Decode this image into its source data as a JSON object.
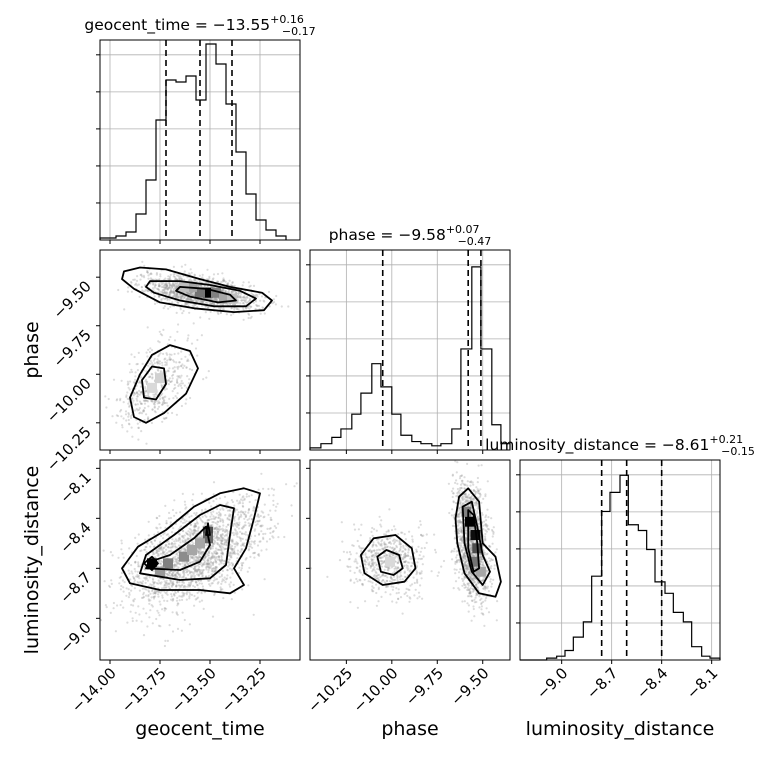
{
  "chart_data": [
    {
      "type": "histogram",
      "panel": "diag-0",
      "title": {
        "prefix": "geocent_time = −13.55",
        "sup": "+0.16",
        "sub": "−0.17"
      },
      "xlim": [
        -14.05,
        -13.05
      ],
      "xticks": [
        -14.0,
        -13.75,
        -13.5,
        -13.25
      ],
      "xtick_labels": [
        "−14.00",
        "−13.75",
        "−13.50",
        "−13.25"
      ],
      "xlabel": "geocent_time",
      "quantile_lines": [
        -13.72,
        -13.55,
        -13.39
      ],
      "bins": [
        -14.05,
        -13.97,
        -13.92,
        -13.87,
        -13.82,
        -13.77,
        -13.72,
        -13.67,
        -13.62,
        -13.57,
        -13.52,
        -13.47,
        -13.42,
        -13.37,
        -13.32,
        -13.27,
        -13.22,
        -13.17,
        -13.12
      ],
      "counts": [
        1,
        2,
        4,
        13,
        30,
        60,
        80,
        79,
        82,
        70,
        98,
        88,
        68,
        44,
        23,
        10,
        5,
        2
      ],
      "ylim": [
        0,
        100
      ]
    },
    {
      "type": "histogram",
      "panel": "diag-1",
      "title": {
        "prefix": "phase = −9.58",
        "sup": "+0.07",
        "sub": "−0.47"
      },
      "xlim": [
        -10.45,
        -9.35
      ],
      "xticks": [
        -10.25,
        -10.0,
        -9.75,
        -9.5
      ],
      "xtick_labels": [
        "−10.25",
        "−10.00",
        "−9.75",
        "−9.50"
      ],
      "xlabel": "phase",
      "quantile_lines": [
        -10.05,
        -9.58,
        -9.51
      ],
      "bins": [
        -10.45,
        -10.39,
        -10.33,
        -10.28,
        -10.22,
        -10.17,
        -10.11,
        -10.06,
        -10.0,
        -9.95,
        -9.89,
        -9.84,
        -9.78,
        -9.73,
        -9.67,
        -9.62,
        -9.56,
        -9.51,
        -9.45,
        -9.4,
        -9.35
      ],
      "counts": [
        1,
        3,
        6,
        10,
        17,
        27,
        41,
        30,
        17,
        7,
        4,
        3,
        2,
        3,
        10,
        48,
        87,
        48,
        12,
        3
      ],
      "ylim": [
        0,
        95
      ]
    },
    {
      "type": "histogram",
      "panel": "diag-2",
      "title": {
        "prefix": "luminosity_distance = −8.61",
        "sup": "+0.21",
        "sub": "−0.15"
      },
      "xlim": [
        -9.25,
        -8.05
      ],
      "xticks": [
        -9.0,
        -8.7,
        -8.4,
        -8.1
      ],
      "xtick_labels": [
        "−9.0",
        "−8.7",
        "−8.4",
        "−8.1"
      ],
      "xlabel": "luminosity_distance",
      "quantile_lines": [
        -8.76,
        -8.61,
        -8.4
      ],
      "bins": [
        -9.25,
        -9.2,
        -9.14,
        -9.09,
        -9.03,
        -8.98,
        -8.93,
        -8.87,
        -8.82,
        -8.76,
        -8.71,
        -8.65,
        -8.6,
        -8.54,
        -8.49,
        -8.44,
        -8.38,
        -8.33,
        -8.27,
        -8.22,
        -8.16,
        -8.11,
        -8.05
      ],
      "counts": [
        0,
        0,
        0,
        1,
        2,
        5,
        12,
        20,
        44,
        78,
        88,
        97,
        71,
        68,
        58,
        41,
        35,
        25,
        20,
        7,
        2,
        1
      ],
      "ylim": [
        0,
        105
      ]
    },
    {
      "type": "scatter",
      "panel": "geocent_time-vs-phase",
      "xlim": [
        -14.05,
        -13.05
      ],
      "ylim": [
        -10.39,
        -9.36
      ],
      "ylabel": "phase",
      "yticks": [
        -9.5,
        -9.75,
        -10.0,
        -10.25
      ],
      "ytick_labels": [
        "−9.50",
        "−9.75",
        "−10.00",
        "−10.25"
      ],
      "clusters": [
        {
          "n": 1500,
          "mean": [
            -13.55,
            -9.58
          ],
          "std": [
            0.14,
            0.045
          ],
          "rho": -0.45
        },
        {
          "n": 480,
          "mean": [
            -13.77,
            -10.05
          ],
          "std": [
            0.09,
            0.11
          ],
          "rho": 0.5
        }
      ],
      "dense_cells": [
        [
          -13.51,
          -9.58,
          1.0
        ],
        [
          -13.55,
          -9.58,
          0.55
        ],
        [
          -13.47,
          -9.58,
          0.5
        ],
        [
          -13.59,
          -9.55,
          0.35
        ],
        [
          -13.43,
          -9.61,
          0.35
        ],
        [
          -13.63,
          -9.55,
          0.25
        ],
        [
          -13.39,
          -9.61,
          0.25
        ],
        [
          -13.75,
          -10.02,
          0.18
        ],
        [
          -13.79,
          -10.07,
          0.15
        ]
      ],
      "contours": [
        [
          [
            -13.93,
            -9.47
          ],
          [
            -13.85,
            -9.45
          ],
          [
            -13.72,
            -9.46
          ],
          [
            -13.55,
            -9.51
          ],
          [
            -13.4,
            -9.55
          ],
          [
            -13.24,
            -9.58
          ],
          [
            -13.19,
            -9.62
          ],
          [
            -13.23,
            -9.67
          ],
          [
            -13.38,
            -9.68
          ],
          [
            -13.58,
            -9.66
          ],
          [
            -13.75,
            -9.63
          ],
          [
            -13.88,
            -9.56
          ],
          [
            -13.94,
            -9.51
          ]
        ],
        [
          [
            -13.8,
            -9.52
          ],
          [
            -13.65,
            -9.52
          ],
          [
            -13.5,
            -9.54
          ],
          [
            -13.35,
            -9.57
          ],
          [
            -13.27,
            -9.61
          ],
          [
            -13.32,
            -9.65
          ],
          [
            -13.48,
            -9.65
          ],
          [
            -13.65,
            -9.62
          ],
          [
            -13.78,
            -9.58
          ],
          [
            -13.82,
            -9.55
          ]
        ],
        [
          [
            -13.65,
            -9.55
          ],
          [
            -13.52,
            -9.56
          ],
          [
            -13.4,
            -9.59
          ],
          [
            -13.37,
            -9.62
          ],
          [
            -13.46,
            -9.63
          ],
          [
            -13.6,
            -9.6
          ],
          [
            -13.67,
            -9.57
          ]
        ],
        [
          [
            -13.88,
            -10.22
          ],
          [
            -13.82,
            -10.25
          ],
          [
            -13.73,
            -10.2
          ],
          [
            -13.62,
            -10.1
          ],
          [
            -13.56,
            -9.97
          ],
          [
            -13.6,
            -9.88
          ],
          [
            -13.7,
            -9.85
          ],
          [
            -13.79,
            -9.9
          ],
          [
            -13.85,
            -10.0
          ],
          [
            -13.9,
            -10.12
          ]
        ],
        [
          [
            -13.83,
            -10.12
          ],
          [
            -13.77,
            -10.13
          ],
          [
            -13.72,
            -10.05
          ],
          [
            -13.73,
            -9.97
          ],
          [
            -13.79,
            -9.96
          ],
          [
            -13.84,
            -10.03
          ]
        ]
      ]
    },
    {
      "type": "scatter",
      "panel": "geocent_time-vs-luminosity_distance",
      "xlim": [
        -14.05,
        -13.05
      ],
      "ylim": [
        -9.25,
        -8.05
      ],
      "ylabel": "luminosity_distance",
      "yticks": [
        -8.1,
        -8.4,
        -8.7,
        -9.0
      ],
      "ytick_labels": [
        "−8.1",
        "−8.4",
        "−8.7",
        "−9.0"
      ],
      "clusters": [
        {
          "n": 2000,
          "mean": [
            -13.58,
            -8.62
          ],
          "std": [
            0.17,
            0.16
          ],
          "rho": 0.55
        }
      ],
      "dense_cells": [
        [
          -13.79,
          -8.67,
          1.0
        ],
        [
          -13.51,
          -8.48,
          0.7
        ],
        [
          -13.51,
          -8.52,
          0.6
        ],
        [
          -13.71,
          -8.67,
          0.5
        ],
        [
          -13.63,
          -8.63,
          0.45
        ],
        [
          -13.75,
          -8.72,
          0.4
        ],
        [
          -13.59,
          -8.59,
          0.35
        ],
        [
          -13.55,
          -8.55,
          0.35
        ]
      ],
      "contours": [
        [
          [
            -13.9,
            -8.79
          ],
          [
            -13.75,
            -8.83
          ],
          [
            -13.55,
            -8.83
          ],
          [
            -13.4,
            -8.85
          ],
          [
            -13.33,
            -8.8
          ],
          [
            -13.38,
            -8.7
          ],
          [
            -13.32,
            -8.58
          ],
          [
            -13.28,
            -8.4
          ],
          [
            -13.25,
            -8.25
          ],
          [
            -13.33,
            -8.22
          ],
          [
            -13.45,
            -8.25
          ],
          [
            -13.58,
            -8.33
          ],
          [
            -13.72,
            -8.47
          ],
          [
            -13.86,
            -8.57
          ],
          [
            -13.94,
            -8.7
          ]
        ],
        [
          [
            -13.85,
            -8.73
          ],
          [
            -13.65,
            -8.77
          ],
          [
            -13.5,
            -8.76
          ],
          [
            -13.42,
            -8.68
          ],
          [
            -13.4,
            -8.5
          ],
          [
            -13.38,
            -8.34
          ],
          [
            -13.45,
            -8.32
          ],
          [
            -13.55,
            -8.38
          ],
          [
            -13.68,
            -8.5
          ],
          [
            -13.82,
            -8.62
          ]
        ],
        [
          [
            -13.82,
            -8.7
          ],
          [
            -13.65,
            -8.71
          ],
          [
            -13.55,
            -8.66
          ],
          [
            -13.5,
            -8.56
          ],
          [
            -13.52,
            -8.45
          ],
          [
            -13.58,
            -8.52
          ],
          [
            -13.7,
            -8.62
          ],
          [
            -13.8,
            -8.66
          ]
        ],
        [
          [
            -13.79,
            -8.63
          ],
          [
            -13.76,
            -8.67
          ],
          [
            -13.79,
            -8.71
          ],
          [
            -13.83,
            -8.67
          ]
        ],
        [
          [
            -13.51,
            -8.43
          ],
          [
            -13.5,
            -8.5
          ],
          [
            -13.52,
            -8.5
          ]
        ]
      ]
    },
    {
      "type": "scatter",
      "panel": "phase-vs-luminosity_distance",
      "xlim": [
        -10.45,
        -9.35
      ],
      "ylim": [
        -9.25,
        -8.05
      ],
      "clusters": [
        {
          "n": 1500,
          "mean": [
            -9.56,
            -8.55
          ],
          "std": [
            0.045,
            0.17
          ],
          "rho": -0.3
        },
        {
          "n": 600,
          "mean": [
            -10.02,
            -8.66
          ],
          "std": [
            0.1,
            0.1
          ],
          "rho": 0.0
        }
      ],
      "dense_cells": [
        [
          -9.57,
          -8.42,
          1.0
        ],
        [
          -9.54,
          -8.5,
          0.95
        ],
        [
          -9.53,
          -8.58,
          0.7
        ],
        [
          -9.55,
          -8.66,
          0.55
        ],
        [
          -9.59,
          -8.36,
          0.5
        ],
        [
          -9.51,
          -8.72,
          0.35
        ],
        [
          -10.01,
          -8.66,
          0.15
        ]
      ],
      "contours": [
        [
          [
            -9.63,
            -8.27
          ],
          [
            -9.58,
            -8.22
          ],
          [
            -9.52,
            -8.3
          ],
          [
            -9.5,
            -8.55
          ],
          [
            -9.43,
            -8.63
          ],
          [
            -9.4,
            -8.78
          ],
          [
            -9.43,
            -8.87
          ],
          [
            -9.52,
            -8.85
          ],
          [
            -9.6,
            -8.73
          ],
          [
            -9.64,
            -8.55
          ],
          [
            -9.65,
            -8.4
          ]
        ],
        [
          [
            -9.61,
            -8.33
          ],
          [
            -9.56,
            -8.3
          ],
          [
            -9.53,
            -8.45
          ],
          [
            -9.5,
            -8.62
          ],
          [
            -9.46,
            -8.72
          ],
          [
            -9.5,
            -8.8
          ],
          [
            -9.56,
            -8.72
          ],
          [
            -9.6,
            -8.55
          ]
        ],
        [
          [
            -9.58,
            -8.35
          ],
          [
            -9.55,
            -8.38
          ],
          [
            -9.53,
            -8.55
          ],
          [
            -9.52,
            -8.7
          ],
          [
            -9.55,
            -8.72
          ],
          [
            -9.58,
            -8.58
          ]
        ],
        [
          [
            -10.17,
            -8.62
          ],
          [
            -10.1,
            -8.52
          ],
          [
            -9.98,
            -8.5
          ],
          [
            -9.89,
            -8.58
          ],
          [
            -9.87,
            -8.7
          ],
          [
            -9.93,
            -8.78
          ],
          [
            -10.05,
            -8.8
          ],
          [
            -10.15,
            -8.73
          ]
        ],
        [
          [
            -10.08,
            -8.63
          ],
          [
            -10.03,
            -8.59
          ],
          [
            -9.96,
            -8.62
          ],
          [
            -9.94,
            -8.7
          ],
          [
            -9.99,
            -8.74
          ],
          [
            -10.06,
            -8.72
          ]
        ]
      ]
    }
  ]
}
